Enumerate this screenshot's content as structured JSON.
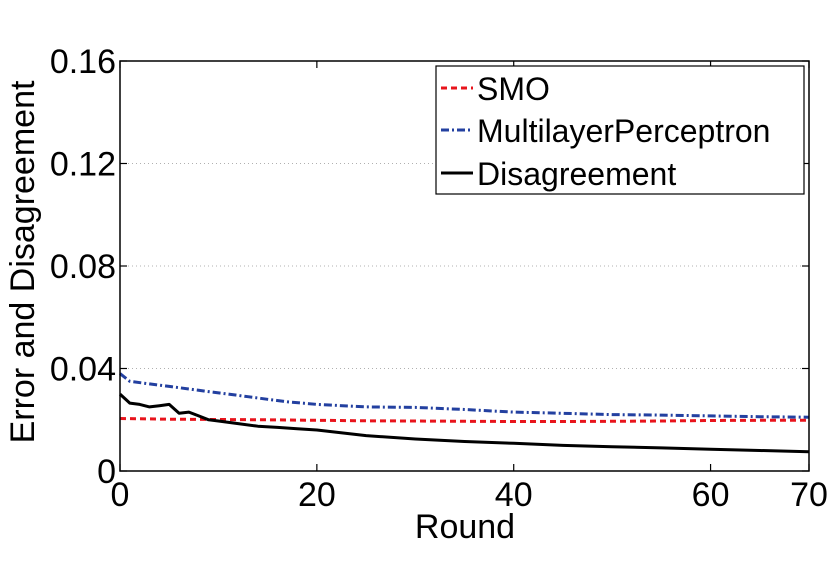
{
  "chart_data": {
    "type": "line",
    "title": "",
    "xlabel": "Round",
    "ylabel": "Error and Disagreement",
    "xlim": [
      0,
      70
    ],
    "ylim": [
      0,
      0.16
    ],
    "xticks": [
      0,
      20,
      40,
      60,
      70
    ],
    "xtick_labels": [
      "0",
      "20",
      "40",
      "60",
      "70"
    ],
    "yticks": [
      0,
      0.04,
      0.08,
      0.12,
      0.16
    ],
    "ytick_labels": [
      "0",
      "0.04",
      "0.08",
      "0.12",
      "0.16"
    ],
    "grid": "horizontal dotted",
    "legend_position": "top-right",
    "series": [
      {
        "name": "SMO",
        "color": "#e8141c",
        "style": "dashed",
        "x": [
          0,
          5,
          10,
          15,
          20,
          25,
          30,
          35,
          40,
          45,
          50,
          55,
          60,
          65,
          70
        ],
        "y": [
          0.0205,
          0.0202,
          0.0201,
          0.02,
          0.0198,
          0.0196,
          0.0195,
          0.0194,
          0.0193,
          0.0193,
          0.0194,
          0.0195,
          0.0197,
          0.0198,
          0.0198
        ]
      },
      {
        "name": "MultilayerPerceptron",
        "color": "#2340a0",
        "style": "dashdot",
        "x": [
          0,
          1,
          3,
          5,
          7,
          9,
          11,
          13,
          15,
          17,
          20,
          25,
          30,
          35,
          40,
          45,
          50,
          55,
          60,
          65,
          70
        ],
        "y": [
          0.038,
          0.035,
          0.034,
          0.033,
          0.032,
          0.031,
          0.03,
          0.029,
          0.028,
          0.027,
          0.026,
          0.025,
          0.0248,
          0.024,
          0.023,
          0.0225,
          0.022,
          0.0218,
          0.0215,
          0.0212,
          0.021
        ]
      },
      {
        "name": "Disagreement",
        "color": "#000000",
        "style": "solid",
        "x": [
          0,
          1,
          2,
          3,
          4,
          5,
          6,
          7,
          8,
          9,
          10,
          12,
          14,
          16,
          18,
          20,
          25,
          30,
          35,
          40,
          45,
          50,
          55,
          60,
          65,
          70
        ],
        "y": [
          0.03,
          0.0265,
          0.026,
          0.025,
          0.0255,
          0.026,
          0.0225,
          0.023,
          0.0215,
          0.02,
          0.0195,
          0.0185,
          0.0175,
          0.017,
          0.0165,
          0.016,
          0.0138,
          0.0125,
          0.0115,
          0.0108,
          0.01,
          0.0095,
          0.009,
          0.0085,
          0.008,
          0.0075
        ]
      }
    ]
  }
}
